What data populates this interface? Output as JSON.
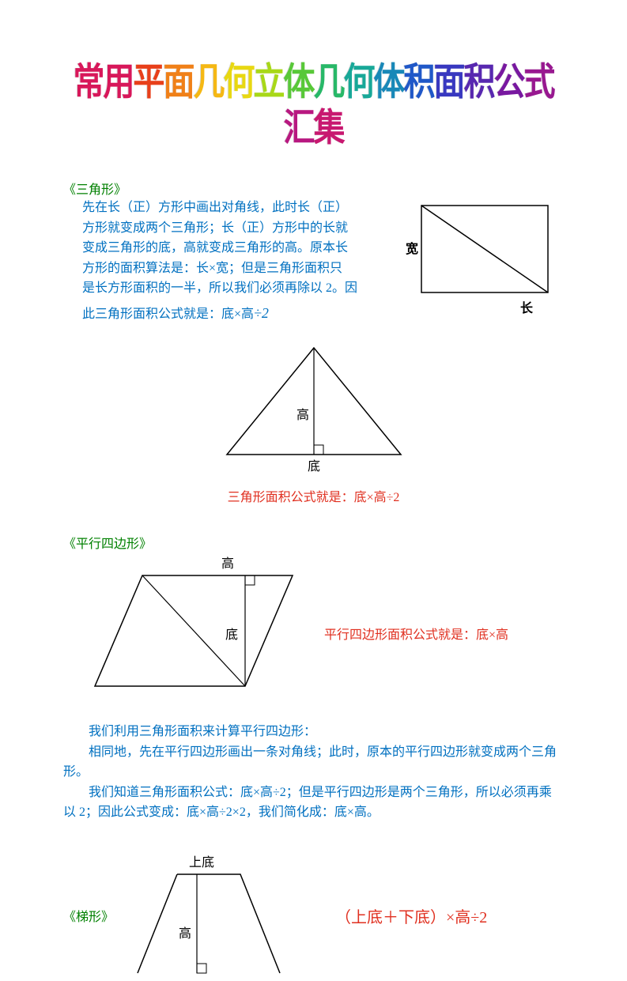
{
  "title": {
    "chars": [
      {
        "t": "常",
        "c": "#d8175a"
      },
      {
        "t": "用",
        "c": "#d8175a"
      },
      {
        "t": "平",
        "c": "#e83f1a"
      },
      {
        "t": "面",
        "c": "#f08018"
      },
      {
        "t": "几",
        "c": "#f5b814"
      },
      {
        "t": "何",
        "c": "#e8d812"
      },
      {
        "t": "立",
        "c": "#a8d818"
      },
      {
        "t": "体",
        "c": "#58c838"
      },
      {
        "t": "几",
        "c": "#28b868"
      },
      {
        "t": "何",
        "c": "#18a898"
      },
      {
        "t": "体",
        "c": "#1888b8"
      },
      {
        "t": "积",
        "c": "#2058c8"
      },
      {
        "t": "面",
        "c": "#3838c0"
      },
      {
        "t": "积",
        "c": "#5828b0"
      },
      {
        "t": "公",
        "c": "#7818a0"
      },
      {
        "t": "式",
        "c": "#981890"
      },
      {
        "t": "汇",
        "c": "#b81880"
      },
      {
        "t": "集",
        "c": "#c81870"
      }
    ]
  },
  "triangle": {
    "heading": "《三角形》",
    "text_lines": [
      "先在长（正）方形中画出对角线，此时长（正）",
      "方形就变成两个三角形；长（正）方形中的长就",
      "变成三角形的底，高就变成三角形的高。原本长",
      "方形的面积算法是：长×宽；但是三角形面积只",
      "是长方形面积的一半，所以我们必须再除以 2。因"
    ],
    "text_last_prefix": "此三角形面积公式就是：底×高",
    "text_last_formula": "÷2",
    "rect_label_width": "宽",
    "rect_label_length": "长",
    "tri_label_height": "高",
    "tri_label_base": "底",
    "formula_caption": "三角形面积公式就是：底×高÷2"
  },
  "parallelogram": {
    "heading": "《平行四边形》",
    "label_height": "高",
    "label_base": "底",
    "formula": "平行四边形面积公式就是：底×高",
    "explain": [
      "我们利用三角形面积来计算平行四边形：",
      "相同地，先在平行四边形画出一条对角线；此时，原本的平行四边形就变成两个三角形。",
      "我们知道三角形面积公式：底×高÷2；但是平行四边形是两个三角形，所以必须再乘以 2；因此公式变成：底×高÷2×2，我们简化成：底×高。"
    ]
  },
  "trapezoid": {
    "heading": "《梯形》",
    "label_top": "上底",
    "label_height": "高",
    "formula": "（上底＋下底）×高÷2"
  },
  "colors": {
    "green": "#008000",
    "red": "#e03020",
    "blue": "#0070c0",
    "black": "#000000",
    "stroke": "#000000"
  }
}
